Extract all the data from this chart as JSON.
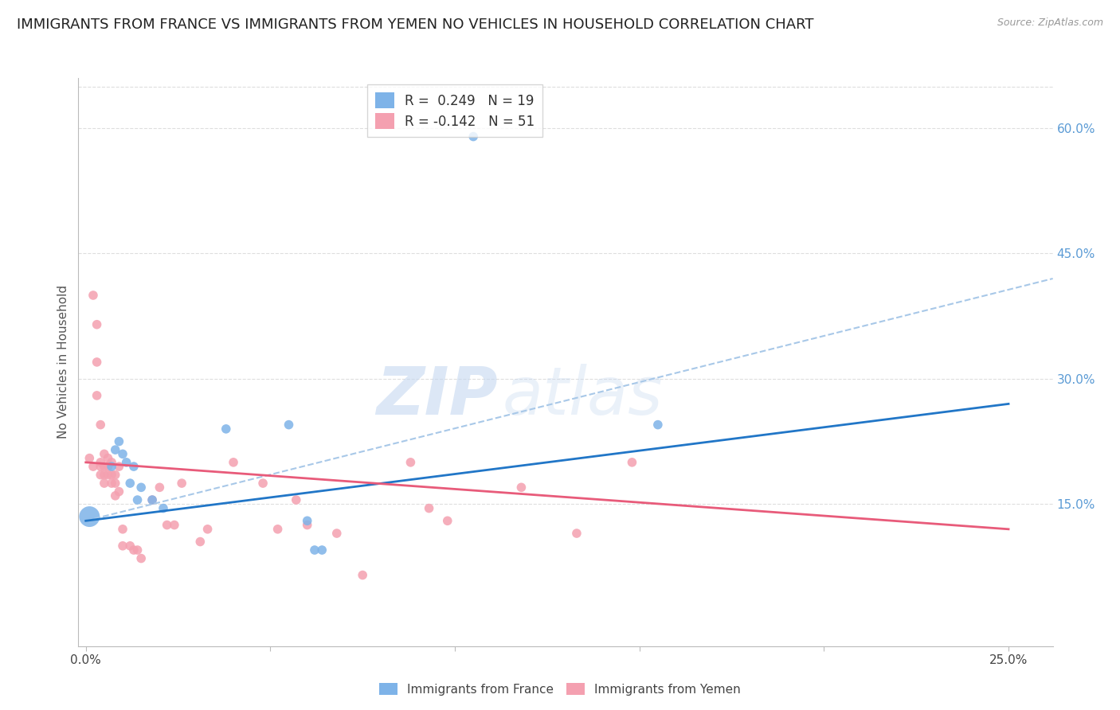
{
  "title": "IMMIGRANTS FROM FRANCE VS IMMIGRANTS FROM YEMEN NO VEHICLES IN HOUSEHOLD CORRELATION CHART",
  "source": "Source: ZipAtlas.com",
  "ylabel": "No Vehicles in Household",
  "y_ticks_right": [
    0.15,
    0.3,
    0.45,
    0.6
  ],
  "y_tick_labels_right": [
    "15.0%",
    "30.0%",
    "45.0%",
    "60.0%"
  ],
  "xlim": [
    -0.002,
    0.262
  ],
  "ylim": [
    -0.02,
    0.66
  ],
  "france_color": "#7EB3E8",
  "yemen_color": "#F4A0B0",
  "france_line_color": "#2176C7",
  "yemen_line_color": "#E85B7A",
  "dashed_line_color": "#A8C8E8",
  "legend_france_R": "R =  0.249",
  "legend_france_N": "N = 19",
  "legend_yemen_R": "R = -0.142",
  "legend_yemen_N": "N = 51",
  "watermark_zip": "ZIP",
  "watermark_atlas": "atlas",
  "france_line": [
    0.0,
    0.13,
    0.25,
    0.27
  ],
  "yemen_line": [
    0.0,
    0.2,
    0.25,
    0.12
  ],
  "dashed_line": [
    0.0,
    0.13,
    0.262,
    0.42
  ],
  "france_scatter": [
    [
      0.001,
      0.135
    ],
    [
      0.007,
      0.195
    ],
    [
      0.008,
      0.215
    ],
    [
      0.009,
      0.225
    ],
    [
      0.01,
      0.21
    ],
    [
      0.011,
      0.2
    ],
    [
      0.012,
      0.175
    ],
    [
      0.013,
      0.195
    ],
    [
      0.014,
      0.155
    ],
    [
      0.015,
      0.17
    ],
    [
      0.018,
      0.155
    ],
    [
      0.021,
      0.145
    ],
    [
      0.038,
      0.24
    ],
    [
      0.055,
      0.245
    ],
    [
      0.06,
      0.13
    ],
    [
      0.062,
      0.095
    ],
    [
      0.064,
      0.095
    ],
    [
      0.105,
      0.59
    ],
    [
      0.155,
      0.245
    ]
  ],
  "france_sizes": [
    350,
    70,
    70,
    70,
    70,
    70,
    70,
    70,
    70,
    70,
    70,
    70,
    70,
    70,
    70,
    70,
    70,
    70,
    70
  ],
  "yemen_scatter": [
    [
      0.001,
      0.205
    ],
    [
      0.002,
      0.195
    ],
    [
      0.002,
      0.4
    ],
    [
      0.003,
      0.365
    ],
    [
      0.003,
      0.32
    ],
    [
      0.003,
      0.28
    ],
    [
      0.004,
      0.245
    ],
    [
      0.004,
      0.2
    ],
    [
      0.004,
      0.195
    ],
    [
      0.004,
      0.185
    ],
    [
      0.005,
      0.21
    ],
    [
      0.005,
      0.195
    ],
    [
      0.005,
      0.185
    ],
    [
      0.005,
      0.175
    ],
    [
      0.006,
      0.205
    ],
    [
      0.006,
      0.195
    ],
    [
      0.006,
      0.185
    ],
    [
      0.007,
      0.2
    ],
    [
      0.007,
      0.185
    ],
    [
      0.007,
      0.175
    ],
    [
      0.008,
      0.185
    ],
    [
      0.008,
      0.175
    ],
    [
      0.008,
      0.16
    ],
    [
      0.009,
      0.195
    ],
    [
      0.009,
      0.165
    ],
    [
      0.01,
      0.12
    ],
    [
      0.01,
      0.1
    ],
    [
      0.012,
      0.1
    ],
    [
      0.013,
      0.095
    ],
    [
      0.014,
      0.095
    ],
    [
      0.015,
      0.085
    ],
    [
      0.018,
      0.155
    ],
    [
      0.02,
      0.17
    ],
    [
      0.022,
      0.125
    ],
    [
      0.024,
      0.125
    ],
    [
      0.026,
      0.175
    ],
    [
      0.031,
      0.105
    ],
    [
      0.033,
      0.12
    ],
    [
      0.04,
      0.2
    ],
    [
      0.048,
      0.175
    ],
    [
      0.052,
      0.12
    ],
    [
      0.057,
      0.155
    ],
    [
      0.06,
      0.125
    ],
    [
      0.068,
      0.115
    ],
    [
      0.075,
      0.065
    ],
    [
      0.088,
      0.2
    ],
    [
      0.093,
      0.145
    ],
    [
      0.098,
      0.13
    ],
    [
      0.118,
      0.17
    ],
    [
      0.133,
      0.115
    ],
    [
      0.148,
      0.2
    ]
  ],
  "yemen_size": 70,
  "grid_color": "#DEDEDE",
  "background_color": "#FFFFFF",
  "right_axis_color": "#5B9BD5",
  "title_fontsize": 13,
  "axis_label_fontsize": 11,
  "legend_fontsize": 12
}
